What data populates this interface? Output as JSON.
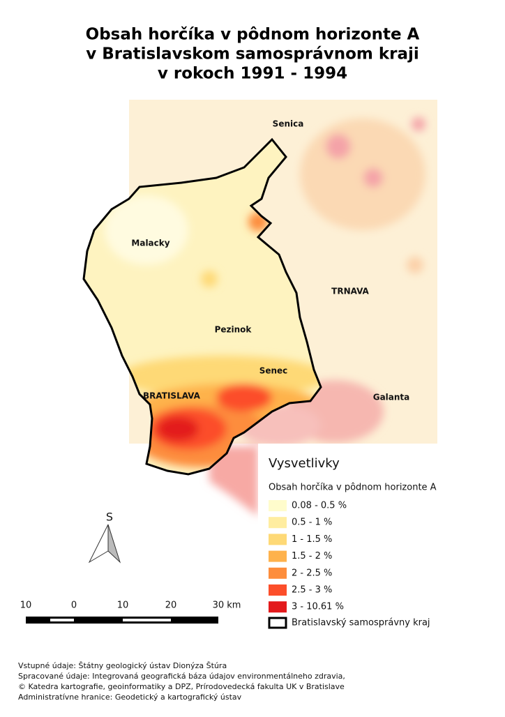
{
  "title": [
    "Obsah horčíka v pôdnom horizonte A",
    "v Bratislavskom samosprávnom kraji",
    "v rokoch 1991 - 1994"
  ],
  "places": [
    "Senica",
    "Malacky",
    "TRNAVA",
    "Pezinok",
    "Senec",
    "BRATISLAVA",
    "Galanta"
  ],
  "legend": {
    "title": "Vysvetlivky",
    "subtitle": "Obsah horčíka v pôdnom horizonte A",
    "items": [
      {
        "label": "0.08 - 0.5 %",
        "color": "#fffccc"
      },
      {
        "label": "0.5 - 1 %",
        "color": "#ffeda0"
      },
      {
        "label": "1 - 1.5 %",
        "color": "#fed976"
      },
      {
        "label": "1.5 - 2 %",
        "color": "#feb24c"
      },
      {
        "label": "2 - 2.5 %",
        "color": "#fd8d3c"
      },
      {
        "label": "2.5 - 3 %",
        "color": "#fc4e2a"
      },
      {
        "label": "3 - 10.61 %",
        "color": "#e31a1c"
      }
    ],
    "boundary": "Bratislavský samosprávny kraj"
  },
  "north": "S",
  "scale": [
    "10",
    "0",
    "10",
    "20",
    "30 km"
  ],
  "footer": [
    "Vstupné údaje: Štátny geologický ústav Dionýza Štúra",
    "Spracované údaje: Integrovaná geografická báza údajov environmentálneho zdravia,",
    "© Katedra kartografie, geoinformatiky a DPZ, Prírodovedecká fakulta UK v Bratislave",
    "Administratívne hranice: Geodetický a kartografický ústav"
  ]
}
